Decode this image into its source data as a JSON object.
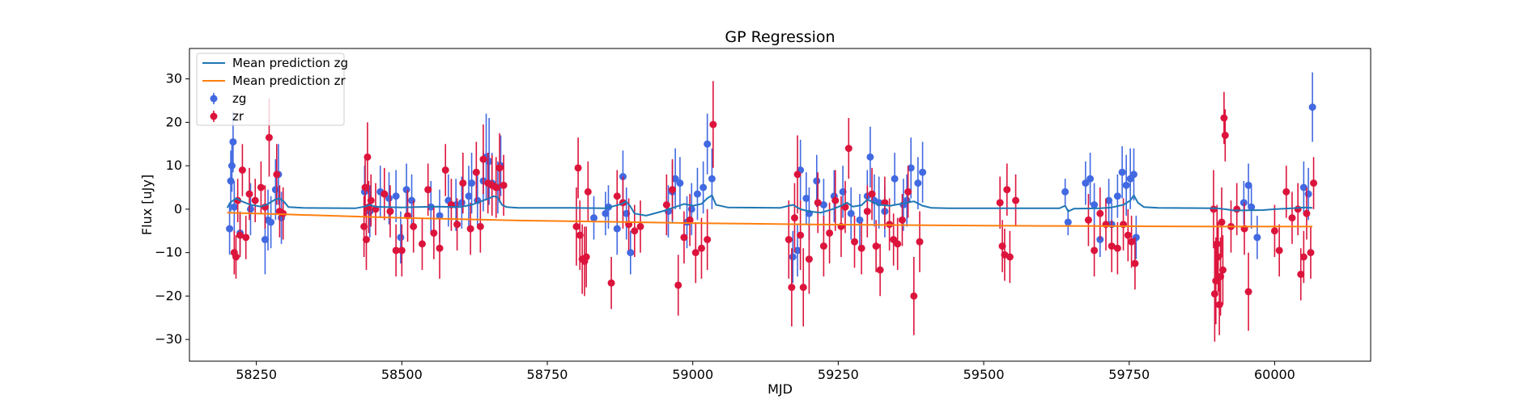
{
  "chart_data": {
    "type": "scatter",
    "title": "GP Regression",
    "xlabel": "MJD",
    "ylabel": "Flux [uJy]",
    "xlim": [
      58135,
      60165
    ],
    "ylim": [
      -35,
      37
    ],
    "xticks": [
      58250,
      58500,
      58750,
      59000,
      59250,
      59500,
      59750,
      60000
    ],
    "yticks": [
      -30,
      -20,
      -10,
      0,
      10,
      20,
      30
    ],
    "grid": false,
    "legend_position": "top-left",
    "colors": {
      "zg_line": "#1f77b4",
      "zr_line": "#ff7f0e",
      "zg_points": "#4169e1",
      "zr_points": "#dc143c"
    },
    "legend": [
      {
        "label": "Mean prediction zg",
        "kind": "line",
        "color": "#1f77b4"
      },
      {
        "label": "Mean prediction zr",
        "kind": "line",
        "color": "#ff7f0e"
      },
      {
        "label": "zg",
        "kind": "errorbar",
        "color": "#4169e1"
      },
      {
        "label": "zr",
        "kind": "errorbar",
        "color": "#dc143c"
      }
    ],
    "series": [
      {
        "name": "Mean prediction zg",
        "kind": "line",
        "x": [
          58200,
          58205,
          58215,
          58225,
          58240,
          58258,
          58270,
          58282,
          58290,
          58297,
          58305,
          58330,
          58420,
          58436,
          58445,
          58454,
          58470,
          58500,
          58560,
          58600,
          58620,
          58640,
          58650,
          58658,
          58665,
          58672,
          58680,
          58700,
          58790,
          58850,
          58878,
          58885,
          58892,
          58900,
          58920,
          58950,
          58970,
          58985,
          59000,
          59015,
          59025,
          59033,
          59040,
          59060,
          59150,
          59172,
          59185,
          59200,
          59220,
          59240,
          59255,
          59265,
          59275,
          59290,
          59300,
          59320,
          59340,
          59360,
          59380,
          59395,
          59410,
          59440,
          59550,
          59630,
          59640,
          59645,
          59655,
          59700,
          59720,
          59740,
          59752,
          59758,
          59765,
          59775,
          59800,
          59900,
          59915,
          59930,
          59980,
          60000,
          60030,
          60050,
          60065
        ],
        "y": [
          0.3,
          1.5,
          2.5,
          1.8,
          1.0,
          0.6,
          1.2,
          2.2,
          2.5,
          1.8,
          0.5,
          0.3,
          0.2,
          0.6,
          1.0,
          0.6,
          0.5,
          0.4,
          0.6,
          0.5,
          1.0,
          2.0,
          2.5,
          3.0,
          2.7,
          1.0,
          0.5,
          0.3,
          0.3,
          0.2,
          1.2,
          1.8,
          0.8,
          -1.0,
          -1.5,
          -0.4,
          0.5,
          1.2,
          0.8,
          1.2,
          2.5,
          3.2,
          1.0,
          0.4,
          0.3,
          1.0,
          0.0,
          -0.5,
          -0.8,
          0.0,
          0.8,
          1.5,
          0.6,
          0.9,
          2.2,
          1.0,
          0.8,
          1.3,
          1.8,
          0.8,
          0.3,
          0.2,
          0.2,
          0.2,
          0.8,
          -0.5,
          0.1,
          0.2,
          0.4,
          1.0,
          2.0,
          3.2,
          1.5,
          0.5,
          0.3,
          0.2,
          0.0,
          -0.3,
          -0.2,
          0.0,
          0.2,
          0.4,
          0.3
        ]
      },
      {
        "name": "Mean prediction zr",
        "kind": "line",
        "x": [
          58200,
          58300,
          58400,
          58500,
          58600,
          58700,
          58800,
          58900,
          59000,
          59100,
          59200,
          59300,
          59400,
          59500,
          59600,
          59700,
          59800,
          59900,
          60000,
          60065
        ],
        "y": [
          -0.8,
          -1.2,
          -1.6,
          -2.0,
          -2.3,
          -2.6,
          -2.8,
          -3.0,
          -3.2,
          -3.35,
          -3.5,
          -3.6,
          -3.7,
          -3.8,
          -3.85,
          -3.9,
          -3.95,
          -4.0,
          -4.0,
          -4.0
        ]
      },
      {
        "name": "zg",
        "kind": "errorbar",
        "x": [
          58204,
          58206,
          58208,
          58210,
          58212,
          58222,
          58240,
          58265,
          58270,
          58275,
          58283,
          58288,
          58293,
          58436,
          58445,
          58463,
          58478,
          58490,
          58498,
          58508,
          58517,
          58550,
          58565,
          58580,
          58593,
          58603,
          58615,
          58620,
          58630,
          58640,
          58645,
          58650,
          58655,
          58665,
          58670,
          58830,
          58850,
          58855,
          58870,
          58880,
          58886,
          58893,
          58958,
          58965,
          58970,
          58978,
          58990,
          58998,
          59008,
          59018,
          59025,
          59033,
          59172,
          59180,
          59185,
          59195,
          59200,
          59213,
          59225,
          59243,
          59258,
          59272,
          59287,
          59300,
          59305,
          59312,
          59320,
          59330,
          59347,
          59362,
          59368,
          59375,
          59387,
          59395,
          59640,
          59645,
          59675,
          59683,
          59690,
          59700,
          59715,
          59720,
          59730,
          59738,
          59745,
          59752,
          59758,
          59762,
          59947,
          59955,
          59960,
          59970,
          60050,
          60058,
          60065
        ],
        "y": [
          -4.5,
          6.5,
          10.0,
          15.5,
          0.5,
          -5.5,
          0.0,
          -7.0,
          -2.5,
          -3.0,
          4.5,
          8.0,
          -2.0,
          4.0,
          -0.5,
          4.0,
          2.5,
          3.0,
          -6.5,
          4.5,
          2.0,
          0.5,
          -1.5,
          2.0,
          1.0,
          1.5,
          3.0,
          6.0,
          2.0,
          6.5,
          12.0,
          11.0,
          6.0,
          5.0,
          10.0,
          -2.0,
          -1.0,
          0.5,
          -4.5,
          7.5,
          -1.0,
          -10.0,
          -0.5,
          4.0,
          7.0,
          6.0,
          -3.0,
          0.0,
          3.5,
          5.0,
          15.0,
          7.0,
          -11.0,
          -9.5,
          9.0,
          2.5,
          -1.0,
          6.5,
          1.0,
          3.0,
          4.0,
          -1.0,
          -2.5,
          3.0,
          12.0,
          2.0,
          1.5,
          -0.5,
          7.0,
          1.0,
          2.0,
          9.5,
          6.0,
          8.5,
          4.0,
          -3.0,
          6.0,
          7.0,
          1.0,
          -7.0,
          2.0,
          -3.5,
          3.0,
          8.5,
          5.5,
          7.0,
          8.0,
          -6.5,
          1.5,
          5.5,
          0.5,
          -6.5,
          5.0,
          3.5,
          23.5
        ],
        "err": [
          6,
          7,
          6,
          7,
          6,
          5,
          6,
          8,
          7,
          6,
          7,
          7,
          6,
          6,
          6,
          6,
          6,
          6,
          6,
          6,
          6,
          6,
          6,
          6,
          6,
          6,
          7,
          7,
          6,
          7,
          10,
          10,
          7,
          6,
          7,
          5,
          5,
          5,
          6,
          6,
          6,
          5,
          6,
          7,
          7,
          6,
          6,
          6,
          6,
          6,
          7,
          7,
          6,
          6,
          7,
          6,
          6,
          6,
          6,
          6,
          6,
          6,
          6,
          6,
          7,
          6,
          6,
          6,
          6,
          6,
          6,
          7,
          6,
          7,
          3,
          3,
          5,
          6,
          5,
          4,
          5,
          5,
          5,
          6,
          7,
          7,
          6,
          5,
          5,
          5,
          5,
          5,
          6,
          6,
          8
        ]
      },
      {
        "name": "zr",
        "kind": "errorbar",
        "x": [
          58212,
          58215,
          58218,
          58222,
          58226,
          58232,
          58238,
          58248,
          58258,
          58265,
          58272,
          58285,
          58290,
          58296,
          58435,
          58437,
          58439,
          58441,
          58443,
          58447,
          58455,
          58470,
          58480,
          58490,
          58500,
          58510,
          58520,
          58535,
          58545,
          58555,
          58565,
          58575,
          58585,
          58595,
          58605,
          58618,
          58628,
          58635,
          58640,
          58648,
          58655,
          58662,
          58668,
          58675,
          58800,
          58803,
          58806,
          58810,
          58814,
          58817,
          58820,
          58860,
          58870,
          58880,
          58890,
          58900,
          58910,
          58955,
          58965,
          58975,
          58985,
          58995,
          59005,
          59015,
          59025,
          59035,
          59165,
          59170,
          59175,
          59180,
          59185,
          59190,
          59200,
          59215,
          59225,
          59235,
          59245,
          59255,
          59262,
          59268,
          59278,
          59290,
          59300,
          59308,
          59315,
          59322,
          59330,
          59338,
          59345,
          59352,
          59360,
          59370,
          59380,
          59390,
          59528,
          59532,
          59536,
          59540,
          59545,
          59555,
          59680,
          59690,
          59700,
          59710,
          59720,
          59730,
          59740,
          59748,
          59754,
          59760,
          59895,
          59897,
          59899,
          59901,
          59903,
          59905,
          59907,
          59909,
          59911,
          59913,
          59915,
          59925,
          59935,
          59948,
          59955,
          60000,
          60008,
          60020,
          60030,
          60040,
          60045,
          60050,
          60055,
          60062,
          60067
        ],
        "y": [
          -10.0,
          -11.0,
          2.0,
          -6.0,
          9.0,
          -6.5,
          3.5,
          2.0,
          5.0,
          0.5,
          16.5,
          8.0,
          -0.5,
          -1.0,
          -4.0,
          5.0,
          -7.0,
          12.0,
          0.5,
          2.0,
          0.0,
          3.5,
          -0.5,
          -9.5,
          -9.5,
          -1.5,
          -4.0,
          -8.0,
          4.5,
          -5.5,
          -9.0,
          9.0,
          1.0,
          -3.5,
          6.0,
          -4.5,
          8.5,
          -4.0,
          11.5,
          6.0,
          5.5,
          5.0,
          9.5,
          5.5,
          -4.0,
          9.5,
          -6.0,
          -11.5,
          -12.0,
          -11.0,
          4.0,
          -17.0,
          3.0,
          1.5,
          -3.5,
          -5.0,
          -4.0,
          1.0,
          4.5,
          -17.5,
          -6.5,
          -2.5,
          -10.0,
          -9.0,
          -7.0,
          19.5,
          -7.0,
          -18.0,
          -2.0,
          8.0,
          -6.0,
          -18.0,
          -11.5,
          1.5,
          -8.5,
          -5.5,
          2.0,
          -4.0,
          0.5,
          14.0,
          -7.5,
          -9.0,
          -0.5,
          3.5,
          -8.5,
          -14.0,
          1.5,
          -3.5,
          -7.0,
          -8.0,
          -2.5,
          4.0,
          -20.0,
          -7.5,
          1.5,
          -8.5,
          -10.5,
          4.5,
          -11.0,
          2.0,
          -2.5,
          -9.5,
          -1.0,
          -3.5,
          -8.5,
          -9.0,
          -3.5,
          -6.0,
          -7.5,
          -12.5,
          0.0,
          -19.5,
          -16.5,
          -8.0,
          -11.0,
          -22.0,
          -15.5,
          -3.0,
          -14.0,
          21.0,
          17.0,
          -4.0,
          0.0,
          -4.5,
          -19.0,
          -5.0,
          -9.5,
          4.0,
          -2.0,
          0.0,
          -15.0,
          -11.0,
          -1.0,
          -10.0,
          6.0
        ],
        "err": [
          5,
          5,
          5,
          5,
          6,
          5,
          6,
          5,
          6,
          5,
          9,
          7,
          6,
          6,
          7,
          7,
          7,
          8,
          6,
          6,
          6,
          6,
          6,
          6,
          6,
          6,
          6,
          6,
          6,
          6,
          7,
          6,
          6,
          6,
          7,
          6,
          7,
          6,
          8,
          7,
          7,
          7,
          8,
          7,
          9,
          7,
          8,
          8,
          8,
          7,
          7,
          6,
          6,
          6,
          6,
          6,
          6,
          7,
          7,
          7,
          6,
          6,
          7,
          7,
          7,
          10,
          9,
          9,
          8,
          9,
          8,
          9,
          8,
          7,
          7,
          7,
          7,
          7,
          6,
          7,
          6,
          6,
          6,
          6,
          6,
          6,
          6,
          6,
          6,
          6,
          6,
          6,
          9,
          7,
          6,
          6,
          6,
          6,
          6,
          6,
          6,
          6,
          6,
          6,
          6,
          6,
          6,
          6,
          6,
          6,
          9,
          11,
          10,
          9,
          8,
          7,
          9,
          8,
          8,
          6,
          6,
          6,
          6,
          6,
          9,
          6,
          6,
          6,
          6,
          6,
          6,
          6,
          6,
          6,
          6
        ]
      }
    ]
  }
}
